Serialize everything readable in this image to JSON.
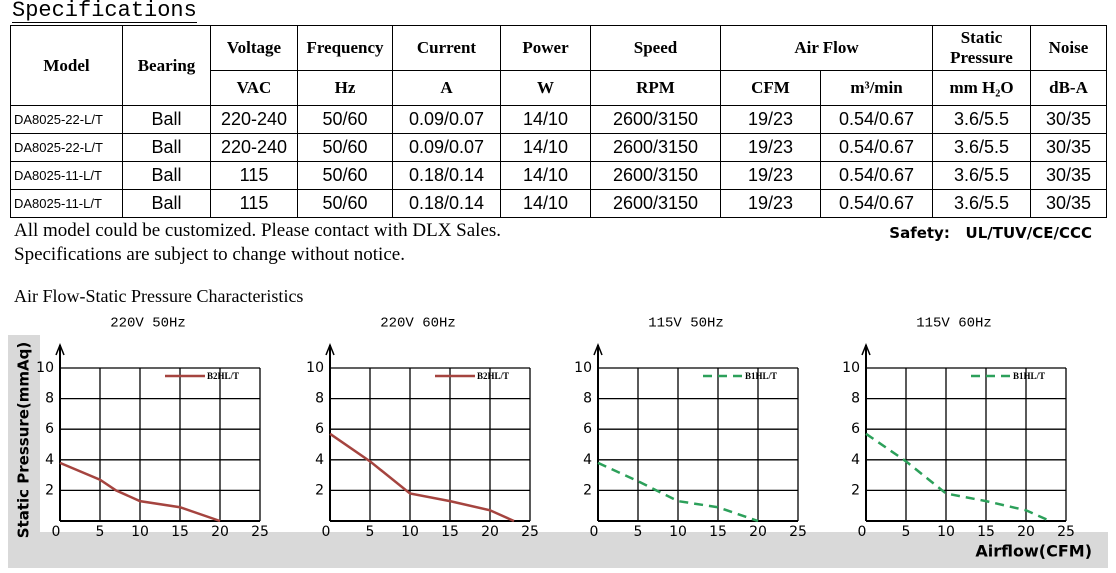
{
  "heading": "Specifications",
  "table": {
    "header_top": [
      "Model",
      "Bearing",
      "Voltage",
      "Frequency",
      "Current",
      "Power",
      "Speed",
      "Air Flow",
      "Static Pressure",
      "Noise"
    ],
    "header_units": [
      "VAC",
      "Hz",
      "A",
      "W",
      "RPM",
      "CFM",
      "m³/min",
      "mm H₂O",
      "dB-A"
    ],
    "rows": [
      [
        "DA8025-22-L/T",
        "Ball",
        "220-240",
        "50/60",
        "0.09/0.07",
        "14/10",
        "2600/3150",
        "19/23",
        "0.54/0.67",
        "3.6/5.5",
        "30/35"
      ],
      [
        "DA8025-22-L/T",
        "Ball",
        "220-240",
        "50/60",
        "0.09/0.07",
        "14/10",
        "2600/3150",
        "19/23",
        "0.54/0.67",
        "3.6/5.5",
        "30/35"
      ],
      [
        "DA8025-11-L/T",
        "Ball",
        "115",
        "50/60",
        "0.18/0.14",
        "14/10",
        "2600/3150",
        "19/23",
        "0.54/0.67",
        "3.6/5.5",
        "30/35"
      ],
      [
        "DA8025-11-L/T",
        "Ball",
        "115",
        "50/60",
        "0.18/0.14",
        "14/10",
        "2600/3150",
        "19/23",
        "0.54/0.67",
        "3.6/5.5",
        "30/35"
      ]
    ]
  },
  "notes": [
    "All model could be customized. Please contact with DLX Sales.",
    "Specifications are subject to change without notice."
  ],
  "safety": {
    "label": "Safety:",
    "value": "UL/TUV/CE/CCC"
  },
  "charts_title": "Air Flow-Static Pressure Characteristics",
  "y_axis_label": "Static Pressure(mmAq)",
  "x_axis_label": "Airflow(CFM)",
  "chart_data": [
    {
      "type": "line",
      "title": "220V 50Hz",
      "xlim": [
        0,
        25
      ],
      "ylim": [
        0,
        10
      ],
      "xticks": [
        0,
        5,
        10,
        15,
        20,
        25
      ],
      "yticks": [
        2,
        4,
        6,
        8,
        10
      ],
      "grid": true,
      "series": [
        {
          "name": "B2HL/T",
          "color": "#a5443f",
          "dashed": false,
          "x": [
            0,
            5,
            7,
            10,
            15,
            20
          ],
          "values": [
            3.8,
            2.7,
            2.0,
            1.3,
            0.9,
            0
          ]
        }
      ]
    },
    {
      "type": "line",
      "title": "220V 60Hz",
      "xlim": [
        0,
        25
      ],
      "ylim": [
        0,
        10
      ],
      "xticks": [
        0,
        5,
        10,
        15,
        20,
        25
      ],
      "yticks": [
        2,
        4,
        6,
        8,
        10
      ],
      "grid": true,
      "series": [
        {
          "name": "B2HL/T",
          "color": "#a5443f",
          "dashed": false,
          "x": [
            0,
            5,
            10,
            15,
            20,
            23
          ],
          "values": [
            5.7,
            3.9,
            1.8,
            1.3,
            0.7,
            0
          ]
        }
      ]
    },
    {
      "type": "line",
      "title": "115V 50Hz",
      "xlim": [
        0,
        25
      ],
      "ylim": [
        0,
        10
      ],
      "xticks": [
        0,
        5,
        10,
        15,
        20,
        25
      ],
      "yticks": [
        2,
        4,
        6,
        8,
        10
      ],
      "grid": true,
      "series": [
        {
          "name": "B1HL/T",
          "color": "#2ca05a",
          "dashed": true,
          "x": [
            0,
            5,
            10,
            15,
            20
          ],
          "values": [
            3.8,
            2.6,
            1.3,
            0.9,
            0
          ]
        }
      ]
    },
    {
      "type": "line",
      "title": "115V 60Hz",
      "xlim": [
        0,
        25
      ],
      "ylim": [
        0,
        10
      ],
      "xticks": [
        0,
        5,
        10,
        15,
        20,
        25
      ],
      "yticks": [
        2,
        4,
        6,
        8,
        10
      ],
      "grid": true,
      "series": [
        {
          "name": "B1HL/T",
          "color": "#2ca05a",
          "dashed": true,
          "x": [
            0,
            5,
            10,
            15,
            20,
            23
          ],
          "values": [
            5.7,
            3.9,
            1.8,
            1.3,
            0.7,
            0
          ]
        }
      ]
    }
  ]
}
